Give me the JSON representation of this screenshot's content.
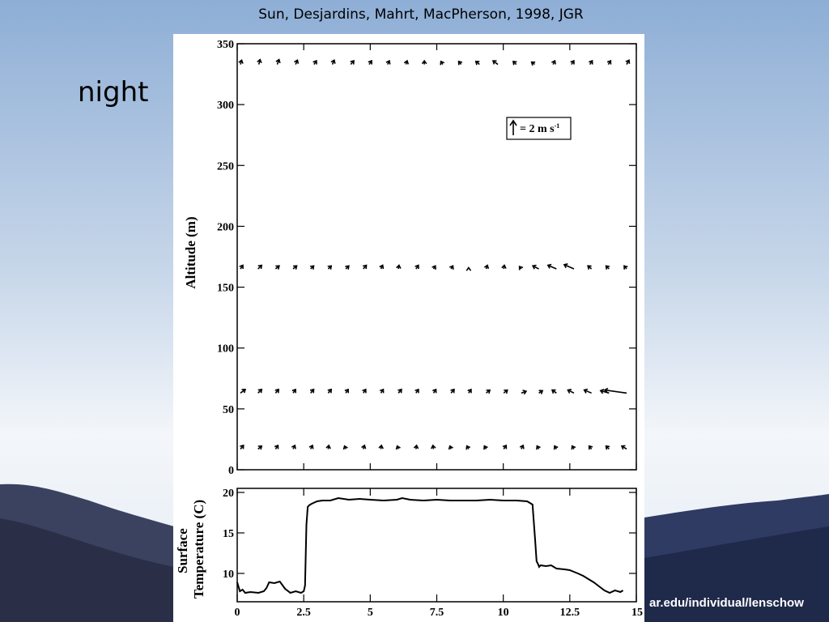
{
  "slide": {
    "citation": "Sun, Desjardins, Mahrt, MacPherson, 1998, JGR",
    "side_label": "night",
    "url_fragment": "ar.edu/individual/lenschow"
  },
  "chart_data": [
    {
      "type": "vector-profile",
      "ylabel": "Altitude (m)",
      "ylim": [
        0,
        350
      ],
      "yticks": [
        0,
        50,
        100,
        150,
        200,
        250,
        300,
        350
      ],
      "xlim": [
        0,
        15
      ],
      "scale_key": {
        "text": "= 2 m s",
        "exponent": "-1",
        "value_ms": 2
      },
      "levels": [
        {
          "altitude": 333,
          "vectors": [
            [
              0.2,
              0.7
            ],
            [
              0.2,
              0.8
            ],
            [
              0.3,
              0.8
            ],
            [
              0.3,
              0.7
            ],
            [
              0.4,
              0.6
            ],
            [
              0.3,
              0.7
            ],
            [
              0.5,
              0.6
            ],
            [
              0.4,
              0.6
            ],
            [
              0.3,
              0.6
            ],
            [
              0.2,
              0.6
            ],
            [
              0.0,
              0.6
            ],
            [
              -0.3,
              0.5
            ],
            [
              -0.4,
              0.5
            ],
            [
              -0.6,
              0.5
            ],
            [
              -0.8,
              0.6
            ],
            [
              -0.5,
              0.5
            ],
            [
              -0.5,
              0.4
            ],
            [
              0.3,
              0.6
            ],
            [
              0.4,
              0.6
            ],
            [
              0.4,
              0.6
            ],
            [
              0.4,
              0.6
            ],
            [
              0.4,
              0.7
            ]
          ]
        },
        {
          "altitude": 165,
          "vectors": [
            [
              0.4,
              0.6
            ],
            [
              0.6,
              0.6
            ],
            [
              0.6,
              0.5
            ],
            [
              0.6,
              0.5
            ],
            [
              0.5,
              0.5
            ],
            [
              0.5,
              0.5
            ],
            [
              0.5,
              0.5
            ],
            [
              0.5,
              0.6
            ],
            [
              0.3,
              0.6
            ],
            [
              0.1,
              0.6
            ],
            [
              0.4,
              0.6
            ],
            [
              0.3,
              0.5
            ],
            [
              0.3,
              0.5
            ],
            [
              0.0,
              0.2
            ],
            [
              0.2,
              0.6
            ],
            [
              0.1,
              0.6
            ],
            [
              -0.3,
              0.4
            ],
            [
              -1.0,
              0.5
            ],
            [
              -1.4,
              0.6
            ],
            [
              -1.6,
              0.7
            ],
            [
              -0.6,
              0.5
            ],
            [
              -0.5,
              0.5
            ],
            [
              -0.4,
              0.5
            ]
          ]
        },
        {
          "altitude": 63,
          "vectors": [
            [
              0.8,
              0.6
            ],
            [
              0.6,
              0.6
            ],
            [
              0.5,
              0.6
            ],
            [
              0.4,
              0.6
            ],
            [
              0.5,
              0.6
            ],
            [
              0.5,
              0.6
            ],
            [
              0.4,
              0.6
            ],
            [
              0.4,
              0.6
            ],
            [
              0.4,
              0.6
            ],
            [
              0.5,
              0.6
            ],
            [
              0.4,
              0.6
            ],
            [
              0.4,
              0.6
            ],
            [
              0.5,
              0.6
            ],
            [
              0.4,
              0.6
            ],
            [
              0.6,
              0.5
            ],
            [
              0.6,
              0.5
            ],
            [
              0.8,
              0.3
            ],
            [
              0.6,
              0.4
            ],
            [
              -0.7,
              0.5
            ],
            [
              -1.0,
              0.5
            ],
            [
              -1.2,
              0.5
            ],
            [
              -1.4,
              0.4
            ],
            [
              -3.6,
              0.5
            ]
          ]
        },
        {
          "altitude": 17,
          "vectors": [
            [
              0.5,
              0.6
            ],
            [
              0.6,
              0.5
            ],
            [
              0.4,
              0.6
            ],
            [
              0.3,
              0.6
            ],
            [
              0.3,
              0.6
            ],
            [
              0.1,
              0.6
            ],
            [
              -0.2,
              0.5
            ],
            [
              0.2,
              0.6
            ],
            [
              0.1,
              0.6
            ],
            [
              -0.2,
              0.5
            ],
            [
              0.1,
              0.6
            ],
            [
              -0.1,
              0.6
            ],
            [
              -0.2,
              0.5
            ],
            [
              -0.3,
              0.5
            ],
            [
              -0.3,
              0.5
            ],
            [
              0.4,
              0.6
            ],
            [
              0.3,
              0.6
            ],
            [
              -0.3,
              0.5
            ],
            [
              -0.3,
              0.5
            ],
            [
              -0.3,
              0.5
            ],
            [
              -0.4,
              0.5
            ],
            [
              -0.5,
              0.5
            ],
            [
              -0.8,
              0.5
            ]
          ]
        }
      ]
    },
    {
      "type": "line",
      "ylabel": "Surface Temperature (C)",
      "ylim": [
        6.5,
        20.5
      ],
      "yticks": [
        10,
        15,
        20
      ],
      "xlim": [
        0,
        15
      ],
      "xticks": [
        0,
        2.5,
        5,
        7.5,
        10,
        12.5,
        15
      ],
      "xticklabels": [
        "0",
        "2.5",
        "5",
        "7.5",
        "10",
        "12.5",
        "15"
      ],
      "series": [
        {
          "x": [
            0,
            0.1,
            0.2,
            0.3,
            0.5,
            0.8,
            1.0,
            1.1,
            1.2,
            1.4,
            1.6,
            1.8,
            2.0,
            2.2,
            2.4,
            2.5,
            2.55,
            2.6,
            2.65,
            2.7,
            2.8,
            3.0,
            3.2,
            3.5,
            3.8,
            4.2,
            4.6,
            5.0,
            5.5,
            6.0,
            6.2,
            6.5,
            7.0,
            7.5,
            8.0,
            8.5,
            9.0,
            9.5,
            10.0,
            10.5,
            10.9,
            11.1,
            11.2,
            11.25,
            11.3,
            11.35,
            11.4,
            11.6,
            11.8,
            12.0,
            12.3,
            12.5,
            12.8,
            13.0,
            13.2,
            13.4,
            13.6,
            13.8,
            14.0,
            14.2,
            14.4,
            14.5
          ],
          "y": [
            8.9,
            7.8,
            8.0,
            7.6,
            7.7,
            7.6,
            7.8,
            8.2,
            8.9,
            8.8,
            9.0,
            8.1,
            7.6,
            7.8,
            7.6,
            7.8,
            8.5,
            16.0,
            18.2,
            18.4,
            18.6,
            18.9,
            19.0,
            19.0,
            19.3,
            19.1,
            19.2,
            19.1,
            19.0,
            19.1,
            19.3,
            19.1,
            19.0,
            19.1,
            19.0,
            19.0,
            19.0,
            19.1,
            19.0,
            19.0,
            18.9,
            18.5,
            14.0,
            11.5,
            11.2,
            10.8,
            11.0,
            10.9,
            11.0,
            10.6,
            10.5,
            10.4,
            10.0,
            9.7,
            9.3,
            8.9,
            8.4,
            7.9,
            7.6,
            7.9,
            7.7,
            7.9
          ]
        }
      ]
    }
  ]
}
